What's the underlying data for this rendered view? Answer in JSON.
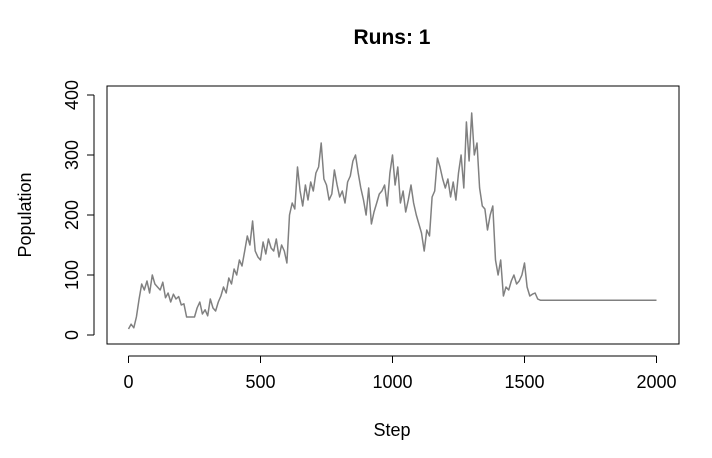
{
  "chart_data": {
    "type": "line",
    "title": "Runs: 1",
    "xlabel": "Step",
    "ylabel": "Population",
    "xlim": [
      0,
      2000
    ],
    "ylim": [
      0,
      400
    ],
    "xticks": [
      0,
      500,
      1000,
      1500,
      2000
    ],
    "yticks": [
      0,
      100,
      200,
      300,
      400
    ],
    "grid": false,
    "line_color": "#808080",
    "series": [
      {
        "x": [
          0,
          10,
          20,
          30,
          40,
          50,
          60,
          70,
          80,
          90,
          100,
          110,
          120,
          130,
          140,
          150,
          160,
          170,
          180,
          190,
          200,
          210,
          220,
          230,
          240,
          250,
          260,
          270,
          280,
          290,
          300,
          310,
          320,
          330,
          340,
          350,
          360,
          370,
          380,
          390,
          400,
          410,
          420,
          430,
          440,
          450,
          460,
          470,
          480,
          490,
          500,
          510,
          520,
          530,
          540,
          550,
          560,
          570,
          580,
          590,
          600,
          610,
          620,
          630,
          640,
          650,
          660,
          670,
          680,
          690,
          700,
          710,
          720,
          730,
          740,
          750,
          760,
          770,
          780,
          790,
          800,
          810,
          820,
          830,
          840,
          850,
          860,
          870,
          880,
          890,
          900,
          910,
          920,
          930,
          940,
          950,
          960,
          970,
          980,
          990,
          1000,
          1010,
          1020,
          1030,
          1040,
          1050,
          1060,
          1070,
          1080,
          1090,
          1100,
          1110,
          1120,
          1130,
          1140,
          1150,
          1160,
          1170,
          1180,
          1190,
          1200,
          1210,
          1220,
          1230,
          1240,
          1250,
          1260,
          1270,
          1280,
          1290,
          1300,
          1310,
          1320,
          1330,
          1340,
          1350,
          1360,
          1370,
          1380,
          1390,
          1400,
          1410,
          1420,
          1430,
          1440,
          1450,
          1460,
          1470,
          1480,
          1490,
          1500,
          1510,
          1520,
          1530,
          1540,
          1550,
          1560,
          2000
        ],
        "y": [
          10,
          18,
          12,
          30,
          60,
          85,
          75,
          90,
          70,
          100,
          85,
          80,
          75,
          88,
          62,
          70,
          55,
          68,
          60,
          64,
          50,
          52,
          30,
          30,
          30,
          30,
          45,
          55,
          35,
          42,
          32,
          60,
          45,
          40,
          55,
          65,
          80,
          70,
          95,
          85,
          110,
          100,
          125,
          115,
          140,
          165,
          150,
          190,
          140,
          130,
          125,
          155,
          135,
          160,
          145,
          140,
          160,
          130,
          150,
          140,
          120,
          200,
          220,
          210,
          280,
          240,
          215,
          250,
          225,
          255,
          240,
          270,
          280,
          320,
          260,
          250,
          225,
          235,
          275,
          250,
          230,
          240,
          220,
          255,
          265,
          290,
          300,
          270,
          245,
          225,
          200,
          245,
          185,
          205,
          220,
          235,
          240,
          250,
          215,
          270,
          300,
          250,
          280,
          220,
          240,
          205,
          225,
          250,
          220,
          200,
          185,
          170,
          140,
          175,
          165,
          230,
          240,
          295,
          280,
          260,
          245,
          260,
          230,
          255,
          225,
          270,
          300,
          245,
          355,
          290,
          370,
          300,
          320,
          245,
          215,
          210,
          175,
          200,
          215,
          125,
          100,
          125,
          65,
          80,
          75,
          90,
          100,
          85,
          90,
          100,
          120,
          80,
          65,
          68,
          70,
          60,
          58,
          58
        ]
      }
    ]
  }
}
